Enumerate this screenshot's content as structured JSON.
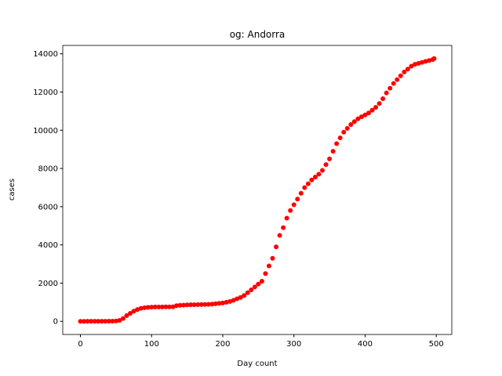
{
  "chart_data": {
    "type": "scatter",
    "title": "og: Andorra",
    "x_label": "Day count",
    "y_label": "cases",
    "series": [
      {
        "color": "#ff0000",
        "x": [
          0,
          5,
          10,
          15,
          20,
          25,
          30,
          35,
          40,
          45,
          50,
          55,
          60,
          65,
          70,
          75,
          80,
          85,
          90,
          95,
          100,
          105,
          110,
          115,
          120,
          125,
          130,
          135,
          140,
          145,
          150,
          155,
          160,
          165,
          170,
          175,
          180,
          185,
          190,
          195,
          200,
          205,
          210,
          215,
          220,
          225,
          230,
          235,
          240,
          245,
          250,
          255,
          260,
          265,
          270,
          275,
          280,
          285,
          290,
          295,
          300,
          305,
          310,
          315,
          320,
          325,
          330,
          335,
          340,
          345,
          350,
          355,
          360,
          365,
          370,
          375,
          380,
          385,
          390,
          395,
          400,
          405,
          410,
          415,
          420,
          425,
          430,
          435,
          440,
          445,
          450,
          455,
          460,
          465,
          470,
          475,
          480,
          485,
          490,
          495,
          497
        ],
        "values": [
          1,
          1,
          2,
          3,
          4,
          5,
          5,
          6,
          8,
          10,
          20,
          50,
          150,
          300,
          420,
          530,
          620,
          680,
          710,
          730,
          740,
          750,
          750,
          750,
          755,
          755,
          760,
          820,
          840,
          850,
          860,
          870,
          870,
          875,
          880,
          885,
          890,
          900,
          920,
          940,
          960,
          1000,
          1040,
          1100,
          1180,
          1250,
          1350,
          1500,
          1650,
          1800,
          1950,
          2100,
          2500,
          2900,
          3300,
          3900,
          4500,
          4900,
          5400,
          5800,
          6100,
          6400,
          6700,
          7000,
          7200,
          7400,
          7550,
          7700,
          7900,
          8200,
          8500,
          8900,
          9300,
          9600,
          9900,
          10100,
          10300,
          10450,
          10600,
          10700,
          10800,
          10900,
          11050,
          11200,
          11400,
          11650,
          11950,
          12200,
          12450,
          12650,
          12850,
          13050,
          13200,
          13350,
          13450,
          13500,
          13550,
          13600,
          13650,
          13700,
          13750
        ]
      }
    ],
    "xlim": [
      -24.85,
      521.85
    ],
    "ylim": [
      -687.5,
      14437.5
    ],
    "xticks": [
      0,
      100,
      200,
      300,
      400,
      500
    ],
    "yticks": [
      0,
      2000,
      4000,
      6000,
      8000,
      10000,
      12000,
      14000
    ],
    "grid": false
  }
}
